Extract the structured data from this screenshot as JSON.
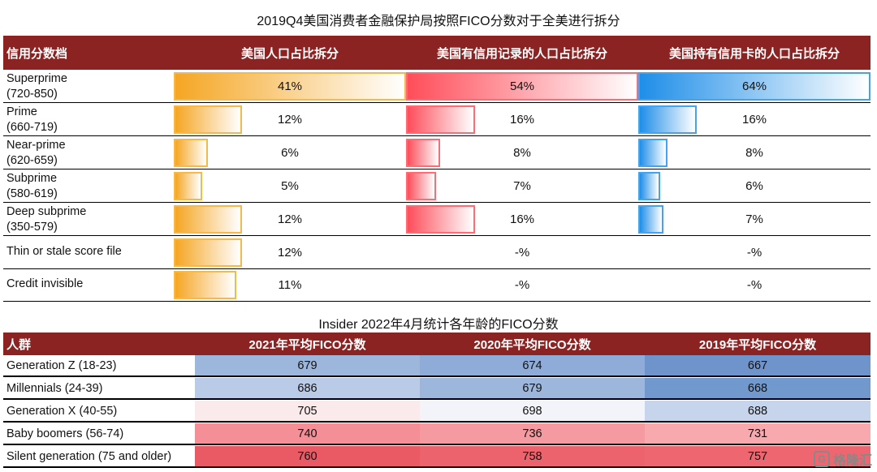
{
  "table1": {
    "title": "2019Q4美国消费者金融保护局按照FICO分数对于全美进行拆分",
    "headers": [
      "信用分数档",
      "美国人口占比拆分",
      "美国有信用记录的人口占比拆分",
      "美国持有信用卡的人口占比拆分"
    ],
    "rows": [
      {
        "name": "Superprime",
        "range": "(720-850)",
        "c1": {
          "text": "41%",
          "value": 41
        },
        "c2": {
          "text": "54%",
          "value": 54
        },
        "c3": {
          "text": "64%",
          "value": 64
        }
      },
      {
        "name": "Prime",
        "range": "(660-719)",
        "c1": {
          "text": "12%",
          "value": 12
        },
        "c2": {
          "text": "16%",
          "value": 16
        },
        "c3": {
          "text": "16%",
          "value": 16
        }
      },
      {
        "name": "Near-prime",
        "range": "(620-659)",
        "c1": {
          "text": "6%",
          "value": 6
        },
        "c2": {
          "text": "8%",
          "value": 8
        },
        "c3": {
          "text": "8%",
          "value": 8
        }
      },
      {
        "name": "Subprime",
        "range": "(580-619)",
        "c1": {
          "text": "5%",
          "value": 5
        },
        "c2": {
          "text": "7%",
          "value": 7
        },
        "c3": {
          "text": "6%",
          "value": 6
        }
      },
      {
        "name": "Deep subprime",
        "range": "(350-579)",
        "c1": {
          "text": "12%",
          "value": 12
        },
        "c2": {
          "text": "16%",
          "value": 16
        },
        "c3": {
          "text": "7%",
          "value": 7
        }
      },
      {
        "name": "Thin or stale score file",
        "range": "",
        "c1": {
          "text": "12%",
          "value": 12
        },
        "c2": {
          "text": "-%",
          "value": 0
        },
        "c3": {
          "text": "-%",
          "value": 0
        }
      },
      {
        "name": "Credit invisible",
        "range": "",
        "c1": {
          "text": "11%",
          "value": 11
        },
        "c2": {
          "text": "-%",
          "value": 0
        },
        "c3": {
          "text": "-%",
          "value": 0
        }
      }
    ],
    "colors": {
      "orange": "#f5a623",
      "red": "#ff4d5a",
      "blue": "#1f8ee8",
      "header": "#8b2323"
    }
  },
  "table2": {
    "title": "Insider 2022年4月统计各年龄的FICO分数",
    "headers": [
      "人群",
      "2021年平均FICO分数",
      "2020年平均FICO分数",
      "2019年平均FICO分数"
    ],
    "rows": [
      {
        "name": "Generation Z (18-23)",
        "values": [
          "679",
          "674",
          "667"
        ],
        "colors": [
          "#9db6dc",
          "#8eacd7",
          "#6f94cc"
        ]
      },
      {
        "name": "Millennials (24-39)",
        "values": [
          "686",
          "679",
          "668"
        ],
        "colors": [
          "#b9cbe7",
          "#9db6dc",
          "#7199ce"
        ]
      },
      {
        "name": "Generation X (40-55)",
        "values": [
          "705",
          "698",
          "688"
        ],
        "colors": [
          "#fbeaec",
          "#f3f4f9",
          "#c6d5ec"
        ]
      },
      {
        "name": "Baby boomers (56-74)",
        "values": [
          "740",
          "736",
          "731"
        ],
        "colors": [
          "#f48f97",
          "#f59aa1",
          "#f7a9ae"
        ]
      },
      {
        "name": "Silent generation (75 and older)",
        "values": [
          "760",
          "758",
          "757"
        ],
        "colors": [
          "#ea5a65",
          "#ed636d",
          "#ee6770"
        ]
      }
    ]
  },
  "watermark": {
    "text": "格隆汇",
    "logo": "G"
  }
}
